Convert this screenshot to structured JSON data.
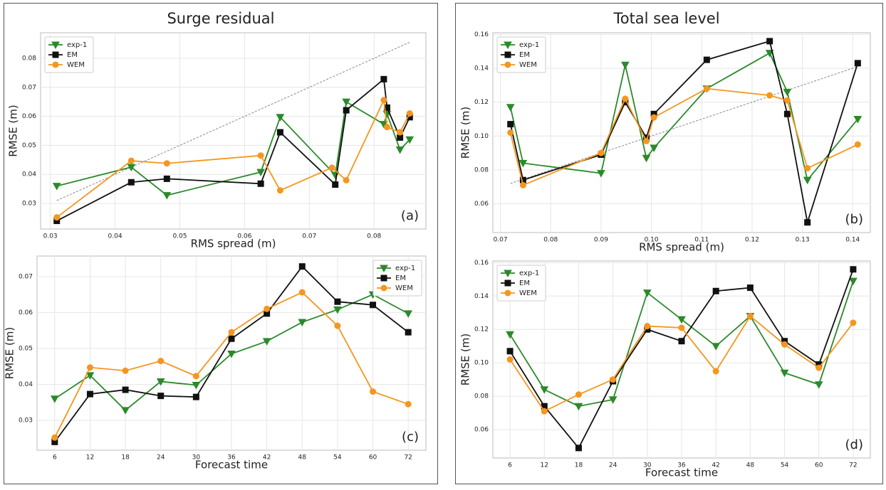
{
  "chart_data": [
    {
      "type": "line",
      "title": "Surge residual",
      "annotation": "(a)",
      "x_label": "RMS spread (m)",
      "y_label": "RMSE (m)",
      "xlim": [
        0.0285,
        0.088
      ],
      "xticks": [
        0.03,
        0.04,
        0.05,
        0.06,
        0.07,
        0.08
      ],
      "ylim": [
        0.0212,
        0.0888
      ],
      "yticks": [
        0.03,
        0.04,
        0.05,
        0.06,
        0.07,
        0.08
      ],
      "grid": true,
      "diagonal": true,
      "legend": "upper left",
      "series": [
        {
          "name": "exp-1",
          "color": "#2a8a2a",
          "marker": "v",
          "x": [
            0.031,
            0.0425,
            0.048,
            0.0625,
            0.0655,
            0.074,
            0.0757,
            0.0815,
            0.082,
            0.084,
            0.0855
          ],
          "values": [
            0.036,
            0.0425,
            0.0328,
            0.0408,
            0.0597,
            0.0398,
            0.065,
            0.0573,
            0.0608,
            0.0485,
            0.052
          ]
        },
        {
          "name": "EM",
          "color": "#111111",
          "marker": "s",
          "x": [
            0.031,
            0.0425,
            0.048,
            0.0625,
            0.0655,
            0.074,
            0.0757,
            0.0815,
            0.082,
            0.084,
            0.0855
          ],
          "values": [
            0.024,
            0.0373,
            0.0385,
            0.0368,
            0.0545,
            0.0365,
            0.0621,
            0.0728,
            0.063,
            0.0527,
            0.0597
          ]
        },
        {
          "name": "WEM",
          "color": "#f5961e",
          "marker": "o",
          "x": [
            0.031,
            0.0425,
            0.048,
            0.0625,
            0.0655,
            0.0735,
            0.0757,
            0.0815,
            0.082,
            0.084,
            0.0855
          ],
          "values": [
            0.0252,
            0.0447,
            0.0438,
            0.0465,
            0.0345,
            0.0423,
            0.038,
            0.0656,
            0.0563,
            0.0545,
            0.061
          ]
        }
      ]
    },
    {
      "type": "line",
      "title": "Total sea level",
      "annotation": "(b)",
      "x_label": "RMS spread (m)",
      "y_label": "RMSE (m)",
      "xlim": [
        0.0685,
        0.1435
      ],
      "xticks": [
        0.07,
        0.08,
        0.09,
        {
          "value": 0.1,
          "label": "0.10"
        },
        0.11,
        0.12,
        0.13,
        0.14
      ],
      "ylim": [
        0.043,
        0.161
      ],
      "yticks": [
        0.06,
        0.08,
        {
          "value": 0.1,
          "label": "0.10"
        },
        0.12,
        0.14,
        0.16
      ],
      "grid": true,
      "diagonal": true,
      "legend": "upper left",
      "series": [
        {
          "name": "exp-1",
          "color": "#2a8a2a",
          "marker": "v",
          "x": [
            0.072,
            0.0745,
            0.09,
            0.0948,
            0.099,
            0.1005,
            0.111,
            0.1235,
            0.127,
            0.131,
            0.141
          ],
          "values": [
            0.117,
            0.084,
            0.078,
            0.142,
            0.087,
            0.093,
            0.128,
            0.149,
            0.126,
            0.074,
            0.11
          ]
        },
        {
          "name": "EM",
          "color": "#111111",
          "marker": "s",
          "x": [
            0.072,
            0.0745,
            0.09,
            0.0948,
            0.099,
            0.1005,
            0.111,
            0.1235,
            0.127,
            0.131,
            0.141
          ],
          "values": [
            0.107,
            0.074,
            0.089,
            0.12,
            0.099,
            0.113,
            0.145,
            0.156,
            0.113,
            0.049,
            0.143
          ]
        },
        {
          "name": "WEM",
          "color": "#f5961e",
          "marker": "o",
          "x": [
            0.072,
            0.0745,
            0.09,
            0.0948,
            0.099,
            0.1005,
            0.111,
            0.1235,
            0.127,
            0.131,
            0.141
          ],
          "values": [
            0.102,
            0.071,
            0.09,
            0.122,
            0.097,
            0.111,
            0.128,
            0.124,
            0.121,
            0.081,
            0.095
          ]
        }
      ]
    },
    {
      "type": "line",
      "annotation": "(c)",
      "x_label": "Forecast time",
      "y_label": "RMSE (m)",
      "categories": [
        "6",
        "12",
        "18",
        "24",
        "30",
        "36",
        "42",
        "48",
        "54",
        "60",
        "72"
      ],
      "ylim": [
        0.0217,
        0.0757
      ],
      "yticks": [
        0.03,
        0.04,
        0.05,
        0.06,
        0.07
      ],
      "grid": true,
      "legend": "upper right",
      "series": [
        {
          "name": "exp-1",
          "color": "#2a8a2a",
          "marker": "v",
          "values": [
            0.036,
            0.0425,
            0.0328,
            0.0408,
            0.0398,
            0.0485,
            0.052,
            0.0573,
            0.0608,
            0.065,
            0.0597
          ]
        },
        {
          "name": "EM",
          "color": "#111111",
          "marker": "s",
          "values": [
            0.024,
            0.0373,
            0.0385,
            0.0368,
            0.0365,
            0.0527,
            0.0597,
            0.0728,
            0.063,
            0.0621,
            0.0545
          ]
        },
        {
          "name": "WEM",
          "color": "#f5961e",
          "marker": "o",
          "values": [
            0.0252,
            0.0447,
            0.0438,
            0.0465,
            0.0423,
            0.0545,
            0.061,
            0.0656,
            0.0563,
            0.038,
            0.0345
          ]
        }
      ]
    },
    {
      "type": "line",
      "annotation": "(d)",
      "x_label": "Forecast time",
      "y_label": "RMSE (m)",
      "categories": [
        "6",
        "12",
        "18",
        "24",
        "30",
        "36",
        "42",
        "48",
        "54",
        "60",
        "72"
      ],
      "ylim": [
        0.043,
        0.161
      ],
      "yticks": [
        0.06,
        0.08,
        {
          "value": 0.1,
          "label": "0.10"
        },
        0.12,
        0.14,
        0.16
      ],
      "grid": true,
      "legend": "upper left",
      "series": [
        {
          "name": "exp-1",
          "color": "#2a8a2a",
          "marker": "v",
          "values": [
            0.117,
            0.084,
            0.074,
            0.078,
            0.142,
            0.126,
            0.11,
            0.128,
            0.094,
            0.087,
            0.149
          ]
        },
        {
          "name": "EM",
          "color": "#111111",
          "marker": "s",
          "values": [
            0.107,
            0.074,
            0.049,
            0.089,
            0.12,
            0.113,
            0.143,
            0.145,
            0.113,
            0.099,
            0.156
          ]
        },
        {
          "name": "WEM",
          "color": "#f5961e",
          "marker": "o",
          "values": [
            0.102,
            0.071,
            0.081,
            0.09,
            0.122,
            0.121,
            0.095,
            0.128,
            0.111,
            0.097,
            0.124
          ]
        }
      ]
    }
  ]
}
